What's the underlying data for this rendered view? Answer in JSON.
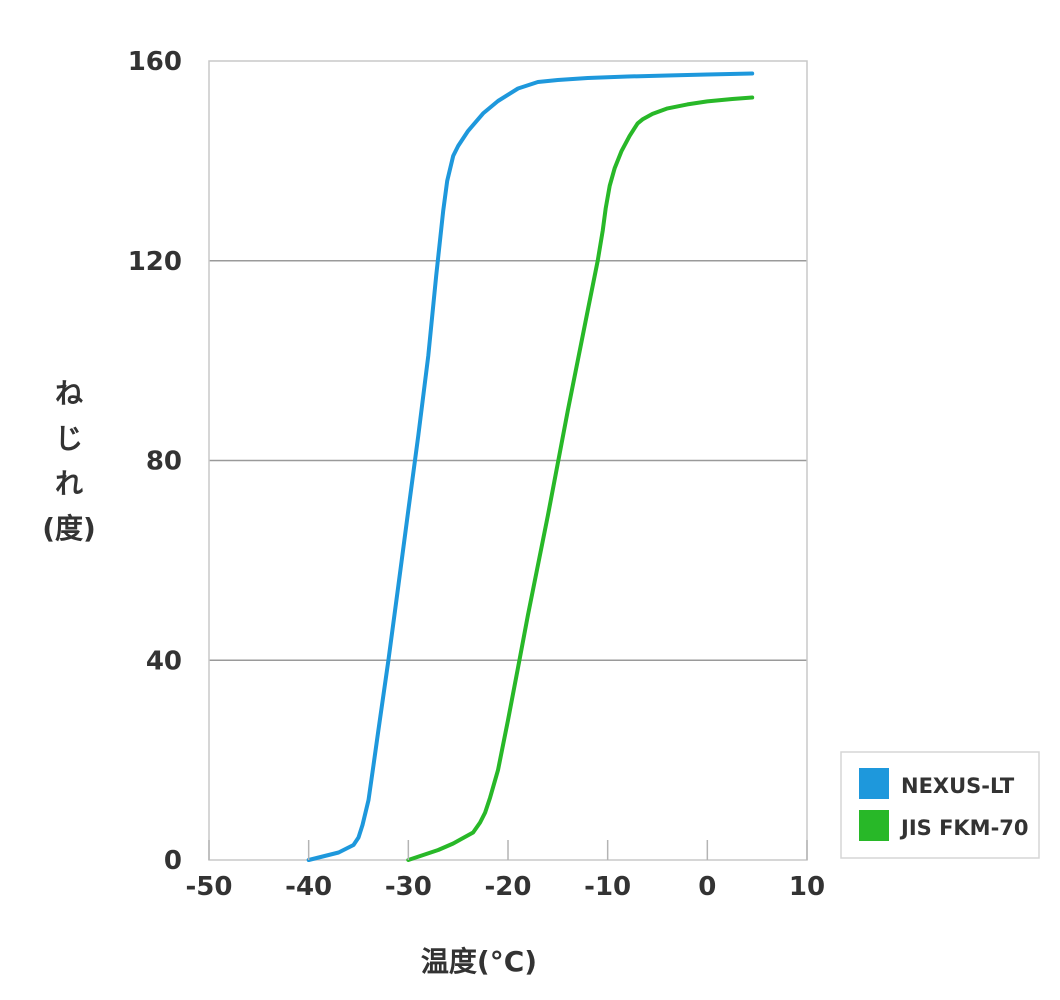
{
  "chart_data": {
    "type": "line",
    "title": "",
    "xlabel": "温度(°C)",
    "ylabel_lines": [
      "ね",
      "じ",
      "れ",
      "(度)"
    ],
    "xlim": [
      -50,
      10
    ],
    "ylim": [
      0,
      160
    ],
    "xticks": [
      -50,
      -40,
      -30,
      -20,
      -10,
      0,
      10
    ],
    "yticks": [
      0,
      40,
      80,
      120,
      160
    ],
    "grid": "horizontal",
    "legend_position": "bottom-right",
    "series": [
      {
        "name": "NEXUS-LT",
        "color": "#1e98dc",
        "x": [
          -40,
          -37,
          -35.5,
          -35,
          -34.6,
          -34,
          -33.5,
          -33,
          -32,
          -31,
          -30,
          -29,
          -28,
          -27.2,
          -26.5,
          -26.1,
          -25.8,
          -25.5,
          -25,
          -24,
          -22.5,
          -21,
          -19,
          -17,
          -15,
          -12,
          -8,
          -4,
          0,
          4.5
        ],
        "y": [
          0,
          1.5,
          3,
          4.5,
          7,
          12,
          19,
          26,
          40,
          55,
          70,
          85,
          101,
          117,
          130,
          136,
          138.5,
          141,
          143,
          146,
          149.5,
          152,
          154.5,
          155.8,
          156.2,
          156.6,
          156.9,
          157.1,
          157.3,
          157.5
        ]
      },
      {
        "name": "JIS FKM-70",
        "color": "#28b828",
        "x": [
          -30,
          -27,
          -25.5,
          -24.5,
          -23.5,
          -22.8,
          -22.3,
          -21.8,
          -21,
          -20,
          -19,
          -18,
          -16,
          -14,
          -12,
          -11,
          -10.5,
          -10.2,
          -9.8,
          -9.3,
          -8.6,
          -7.8,
          -7,
          -6.5,
          -5.5,
          -4,
          -2,
          0,
          2.5,
          4.5
        ],
        "y": [
          0,
          2,
          3.3,
          4.4,
          5.5,
          7.5,
          9.5,
          12.5,
          18,
          28,
          38.5,
          49,
          69,
          90,
          110,
          120,
          126,
          130.5,
          135,
          138.5,
          142,
          145,
          147.5,
          148.3,
          149.4,
          150.5,
          151.3,
          151.9,
          152.4,
          152.7
        ]
      }
    ]
  }
}
